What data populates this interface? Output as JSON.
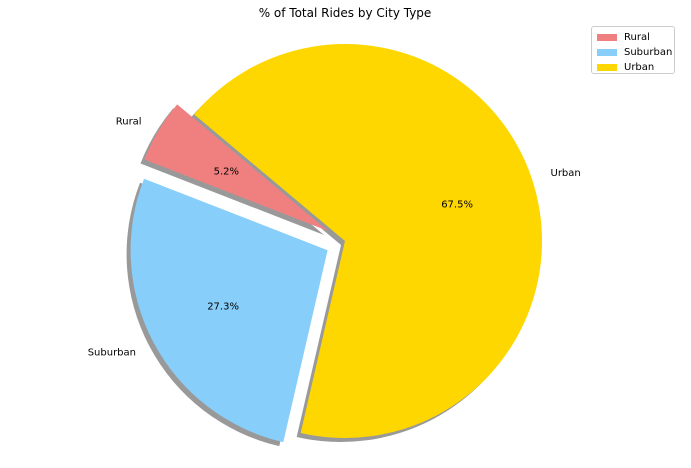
{
  "chart_data": {
    "type": "pie",
    "title": "% of Total Rides by City Type",
    "categories": [
      "Rural",
      "Suburban",
      "Urban"
    ],
    "values": [
      5.2,
      27.3,
      67.5
    ],
    "percent_labels": [
      "5.2%",
      "27.3%",
      "67.5%"
    ],
    "colors": [
      "#f08080",
      "#87cefa",
      "#ffd700"
    ],
    "explode": [
      0.1,
      0.1,
      0
    ],
    "start_angle": 140,
    "shadow": true,
    "legend": {
      "position": "top-right",
      "entries": [
        "Rural",
        "Suburban",
        "Urban"
      ]
    }
  }
}
